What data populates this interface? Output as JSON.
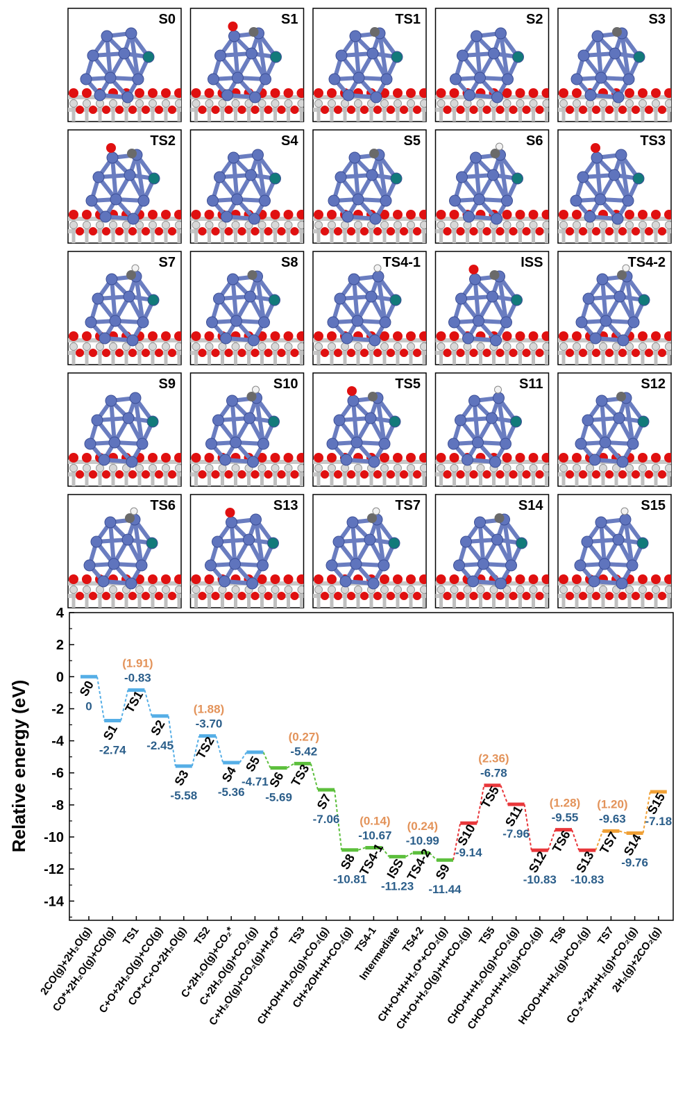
{
  "panels": [
    "S0",
    "S1",
    "TS1",
    "S2",
    "S3",
    "TS2",
    "S4",
    "S5",
    "S6",
    "TS3",
    "S7",
    "S8",
    "TS4-1",
    "ISS",
    "TS4-2",
    "S9",
    "S10",
    "TS5",
    "S11",
    "S12",
    "TS6",
    "S13",
    "TS7",
    "S14",
    "S15"
  ],
  "chart_data": {
    "type": "energy-profile",
    "y_label": "Relative energy (eV)",
    "categories": [
      "2CO(g)+2H₂O(g)",
      "CO*+2H₂O(g)+CO(g)",
      "TS1",
      "C+O+2H₂O(g)+CO(g)",
      "CO*+C+O+2H₂O(g)",
      "TS2",
      "C+2H₂O(g)+CO₂*",
      "C+2H₂O(g)+CO₂(g)",
      "C+H₂O(g)+CO₂(g)+H₂O*",
      "TS3",
      "CH+OH+H₂O(g)+CO₂(g)",
      "CH+2OH+H+CO₂(g)",
      "TS4-1",
      "Intermediate",
      "TS4-2",
      "CH+O+H+H₂O*+CO₂(g)",
      "CH+O+H₂O(g)+H+CO₂(g)",
      "TS5",
      "CHO+H+H₂O(g)+CO₂(g)",
      "CHO+O+H+H₂(g)+CO₂(g)",
      "TS6",
      "HCOO+H+H₂(g)+CO₂(g)",
      "TS7",
      "CO₂*+2H+H₂(g)+CO₂(g)",
      "2H₂(g)+2CO₂(g)"
    ],
    "state_labels": [
      "S0",
      "S1",
      "TS1",
      "S2",
      "S3",
      "TS2",
      "S4",
      "S5",
      "S6",
      "TS3",
      "S7",
      "S8",
      "TS4-1",
      "ISS",
      "TS4-2",
      "S9",
      "S10",
      "TS5",
      "S11",
      "S12",
      "TS6",
      "S13",
      "TS7",
      "S14",
      "S15"
    ],
    "values": [
      0,
      -2.74,
      -0.83,
      -2.45,
      -5.58,
      -3.7,
      -5.36,
      -4.71,
      -5.69,
      -5.42,
      -7.06,
      -10.81,
      -10.67,
      -11.23,
      -10.99,
      -11.44,
      -9.14,
      -6.78,
      -7.96,
      -10.83,
      -9.55,
      -10.83,
      -9.63,
      -9.76,
      -7.18
    ],
    "value_labels": [
      "0",
      "-2.74",
      "-0.83",
      "-2.45",
      "-5.58",
      "-3.70",
      "-5.36",
      "-4.71",
      "-5.69",
      "-5.42",
      "-7.06",
      "-10.81",
      "-10.67",
      "-11.23",
      "-10.99",
      "-11.44",
      "-9.14",
      "-6.78",
      "-7.96",
      "-10.83",
      "-9.55",
      "-10.83",
      "-9.63",
      "-9.76",
      "-7.18"
    ],
    "barriers": [
      null,
      null,
      1.91,
      null,
      null,
      1.88,
      null,
      null,
      null,
      0.27,
      null,
      null,
      0.14,
      null,
      0.24,
      null,
      null,
      2.36,
      null,
      null,
      1.28,
      null,
      1.2,
      null,
      null
    ],
    "barrier_labels": [
      null,
      null,
      "(1.91)",
      null,
      null,
      "(1.88)",
      null,
      null,
      null,
      "(0.27)",
      null,
      null,
      "(0.14)",
      null,
      "(0.24)",
      null,
      null,
      "(2.36)",
      null,
      null,
      "(1.28)",
      null,
      "(1.20)",
      null,
      null
    ],
    "colors": [
      "#55aee6",
      "#55aee6",
      "#55aee6",
      "#55aee6",
      "#55aee6",
      "#55aee6",
      "#55aee6",
      "#55aee6",
      "#5cbf3c",
      "#5cbf3c",
      "#5cbf3c",
      "#5cbf3c",
      "#5cbf3c",
      "#5cbf3c",
      "#5cbf3c",
      "#5cbf3c",
      "#e8363a",
      "#e8363a",
      "#e8363a",
      "#e8363a",
      "#e8363a",
      "#e8363a",
      "#f0a035",
      "#f0a035",
      "#f0a035"
    ],
    "ylim": [
      -15.2,
      4
    ],
    "yticks": [
      -14,
      -12,
      -10,
      -8,
      -6,
      -4,
      -2,
      0,
      2,
      4
    ],
    "yminorticks": [
      -15,
      -13,
      -11,
      -9,
      -7,
      -5,
      -3,
      -1,
      1,
      3
    ]
  }
}
